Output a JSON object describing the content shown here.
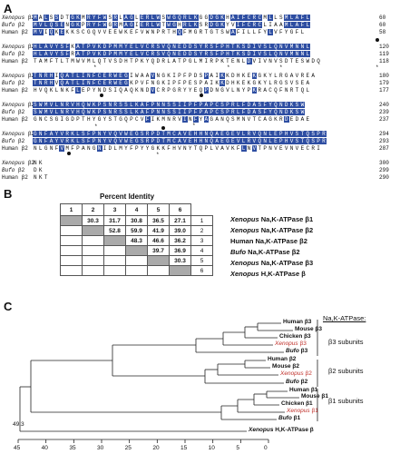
{
  "labels": {
    "a": "A",
    "b": "B",
    "c": "C"
  },
  "alignment": {
    "blocks": [
      {
        "rows": [
          {
            "species": "Xenopus",
            "gene": "β2",
            "seq": "MALSSDTGKMRYFWSRLAGLERLWSWGQRLKGGDGKHAIFCRCMLLSMLAFL",
            "num": "60"
          },
          {
            "species": "Bufo",
            "gene": "β2",
            "seq": "MVLQSENGKPRYFWGRMAGIERLWTWGHRLKSRDGKYVIFCRCLIAAMLAFL",
            "num": "60"
          },
          {
            "species": "Human",
            "gene": "β2",
            "seq": "MVIQKEKKSCGQVVEEWKEFVWNPRTHQFMGRTGTSWAFILLFYLVFYGFL",
            "num": "58"
          }
        ]
      },
      {
        "rows": [
          {
            "species": "Xenopus",
            "gene": "β2",
            "seq": "HLAVYSFKATPVKDPMMYELVCRSVQNEDDSYRSFPHTKSDIVSLQNVMNNL",
            "num": "120"
          },
          {
            "species": "Bufo",
            "gene": "β2",
            "seq": "HLAVYSFRATPVKDPMMYELVCRSVQNEDDSYRSFPHTKSDIVSLQNVMNNL",
            "num": "119"
          },
          {
            "species": "Human",
            "gene": "β2",
            "seq": "TAMFTLTMWVMLQTVSDHTPKYQDRLATPGLMIRPKTENLDVIVNVSDTESWDQ",
            "num": "118"
          }
        ]
      },
      {
        "rows": [
          {
            "species": "Xenopus",
            "gene": "β2",
            "seq": "TNRHIQATLINFCERWEGIWAAVNGKIPFPDSPAIKKDHKEKGKYLRGAVREA",
            "num": "180"
          },
          {
            "species": "Bufo",
            "gene": "β2",
            "seq": "TNRHVQATLINFCERWEGKPVFNGKIPFPESPAIKKDHKEKGKYLRGSVSEA",
            "num": "179"
          },
          {
            "species": "Human",
            "gene": "β2",
            "seq": "HVQKLNKFLEPYNDSIQAQKNDVCRPGRYYEQPDNGVLNYPKRACQFNRTQL",
            "num": "177"
          }
        ]
      },
      {
        "rows": [
          {
            "species": "Xenopus",
            "gene": "β2",
            "seq": "SWMVLNRVHQWKPSNRSSLKAFPNNSSIIPFPAPCSPRLFDASFYQNDKSW",
            "num": "240"
          },
          {
            "species": "Bufo",
            "gene": "β2",
            "seq": "SWMVLNRVHQWKPSNRSSLKAFPNNSSIIPFPAPCSPRLFDASFYQNDKSW",
            "num": "239"
          },
          {
            "species": "Human",
            "gene": "β2",
            "seq": "GNCSGIGDPTHYGYSTGQPCVFIKMNRVINFYAGANQSMNVTCAGKRDEDAE",
            "num": "237"
          }
        ]
      },
      {
        "rows": [
          {
            "species": "Xenopus",
            "gene": "β2",
            "seq": "GNFAYVRKLSFPNYVQVWEGSRPDTMCAVEHHNQAEGEVLRVQNLEPHVSTQSPR",
            "num": "294"
          },
          {
            "species": "Bufo",
            "gene": "β2",
            "seq": "GNFAYVRKLSFPNYVQVWEGSRPDTMCAVEHHNQAEGEVLRVQNLEPHVSTQSPR",
            "num": "293"
          },
          {
            "species": "Human",
            "gene": "β2",
            "seq": "NLGNFVMFPANGNIDLMYFPYYGKKFHVNYTQPLVAVKFLNVTPNVEVNVECRI",
            "num": "287"
          }
        ]
      },
      {
        "rows": [
          {
            "species": "Xenopus",
            "gene": "β2",
            "seq": "NK",
            "num": "300"
          },
          {
            "species": "Bufo",
            "gene": "β2",
            "seq": "DK",
            "num": "299"
          },
          {
            "species": "Human",
            "gene": "β2",
            "seq": "NKT",
            "num": "290"
          }
        ]
      }
    ]
  },
  "percent_identity": {
    "title": "Percent Identity",
    "columns": [
      "1",
      "2",
      "3",
      "4",
      "5",
      "6"
    ],
    "rows": [
      {
        "cells": [
          "",
          "30.3",
          "31.7",
          "30.8",
          "36.5",
          "27.1"
        ],
        "num": "1",
        "pre": "Xenopus",
        "post": " Na,K-ATPase β1"
      },
      {
        "cells": [
          "",
          "",
          "52.8",
          "59.9",
          "41.9",
          "39.0"
        ],
        "num": "2",
        "pre": "Xenopus",
        "post": " Na,K-ATPase β2"
      },
      {
        "cells": [
          "",
          "",
          "",
          "48.3",
          "46.6",
          "36.2"
        ],
        "num": "3",
        "pre": "",
        "post": "Human Na,K-ATPase β2"
      },
      {
        "cells": [
          "",
          "",
          "",
          "",
          "39.7",
          "36.9"
        ],
        "num": "4",
        "pre": "Bufo",
        "post": " Na,K-ATPase β2"
      },
      {
        "cells": [
          "",
          "",
          "",
          "",
          "",
          "30.3"
        ],
        "num": "5",
        "pre": "Xenopus",
        "post": " Na,K-ATPase β3"
      },
      {
        "cells": [
          "",
          "",
          "",
          "",
          "",
          ""
        ],
        "num": "6",
        "pre": "Xenopus",
        "post": " H,K-ATPase β"
      }
    ]
  },
  "tree": {
    "header": "Na,K-ATPase:",
    "subunits": {
      "b3": "β3 subunits",
      "b2": "β2 subunits",
      "b1": "β1 subunits"
    },
    "leaves": {
      "human_b3": {
        "pre": "",
        "name": "Human β3",
        "red": false
      },
      "mouse_b3": {
        "pre": "",
        "name": "Mouse β3",
        "red": false
      },
      "chicken_b3": {
        "pre": "",
        "name": "Chicken β3",
        "red": false
      },
      "xenopus_b3": {
        "pre": "Xenopus",
        "name": " β3",
        "red": true
      },
      "bufo_b3": {
        "pre": "Bufo",
        "name": " β3",
        "red": false
      },
      "human_b2": {
        "pre": "",
        "name": "Human β2",
        "red": false
      },
      "mouse_b2": {
        "pre": "",
        "name": "Mouse β2",
        "red": false
      },
      "xenopus_b2": {
        "pre": "Xenopus",
        "name": " β2",
        "red": true
      },
      "bufo_b2": {
        "pre": "Bufo",
        "name": " β2",
        "red": false
      },
      "human_b1": {
        "pre": "",
        "name": "Human β1",
        "red": false
      },
      "mouse_b1": {
        "pre": "",
        "name": "Mouse β1",
        "red": false
      },
      "chicken_b1": {
        "pre": "",
        "name": "Chicken β1",
        "red": false
      },
      "xenopus_b1": {
        "pre": "Xenopus",
        "name": " β1",
        "red": true
      },
      "bufo_b1": {
        "pre": "Bufo",
        "name": " β1",
        "red": false
      },
      "xenopus_hk": {
        "pre": "Xenopus",
        "name": " H,K-ATPase β",
        "red": false
      }
    },
    "root_value": "49.3",
    "axis_ticks": [
      "45",
      "40",
      "35",
      "30",
      "25",
      "20",
      "15",
      "10",
      "5",
      "0"
    ],
    "colors": {
      "highlight": "#c0302a",
      "identity_box": "#2e4ea2"
    }
  }
}
